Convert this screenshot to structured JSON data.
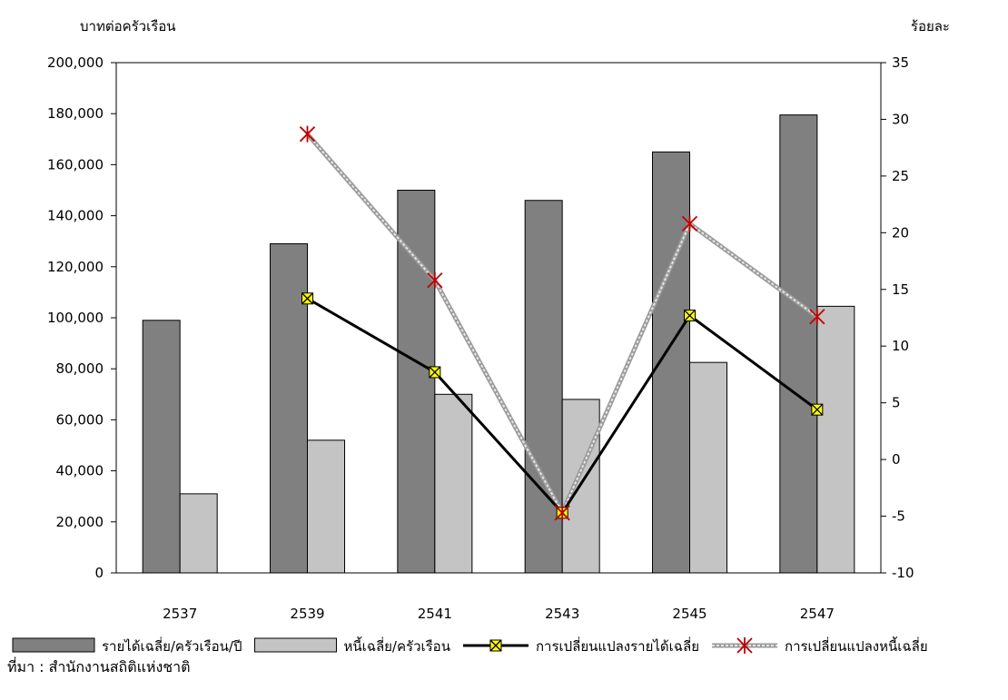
{
  "chart_data": {
    "type": "bar",
    "categories": [
      "2537",
      "2539",
      "2541",
      "2543",
      "2545",
      "2547"
    ],
    "left_axis": {
      "label": "บาทต่อครัวเรือน",
      "ylim": [
        0,
        200000
      ],
      "ticks": [
        "0",
        "20,000",
        "40,000",
        "60,000",
        "80,000",
        "100,000",
        "120,000",
        "140,000",
        "160,000",
        "180,000",
        "200,000"
      ]
    },
    "right_axis": {
      "label": "ร้อยละ",
      "ylim": [
        -10,
        35
      ],
      "ticks": [
        "-10",
        "-5",
        "0",
        "5",
        "10",
        "15",
        "20",
        "25",
        "30",
        "35"
      ]
    },
    "series": [
      {
        "name": "รายได้เฉลี่ย/ครัวเรือน/ปี",
        "type": "bar",
        "axis": "left",
        "color": "#808080",
        "values": [
          99000,
          129000,
          150000,
          146000,
          165000,
          179500
        ]
      },
      {
        "name": "หนี้เฉลี่ย/ครัวเรือน",
        "type": "bar",
        "axis": "left",
        "color": "#c4c4c4",
        "values": [
          31000,
          52000,
          70000,
          68000,
          82500,
          104500
        ]
      },
      {
        "name": "การเปลี่ยนแปลงรายได้เฉลี่ย",
        "type": "line",
        "axis": "right",
        "color": "#000000",
        "marker": "yellow-x-square",
        "values": [
          null,
          14.2,
          7.7,
          -4.7,
          12.7,
          4.4
        ]
      },
      {
        "name": "การเปลี่ยนแปลงหนี้เฉลี่ย",
        "type": "line",
        "axis": "right",
        "color": "#b8b8b8",
        "marker": "red-asterisk",
        "values": [
          null,
          28.7,
          15.8,
          -4.7,
          20.8,
          12.6
        ]
      }
    ],
    "legend_position": "bottom",
    "grid": false
  },
  "source_text": "ที่มา : สำนักงานสถิติแห่งชาติ"
}
